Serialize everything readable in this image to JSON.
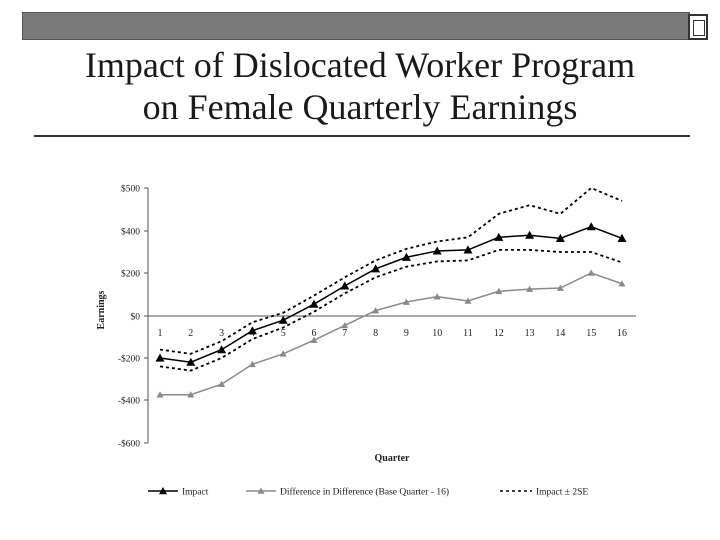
{
  "slide": {
    "title_line1": "Impact of Dislocated Worker Program",
    "title_line2": "on Female Quarterly Earnings"
  },
  "chart_data": {
    "type": "line",
    "xlabel": "Quarter",
    "ylabel": "Earnings",
    "ylim": [
      -500,
      500
    ],
    "y_ticks": [
      500,
      400,
      200,
      0,
      -200,
      -400,
      -600
    ],
    "y_tick_labels": [
      "$500",
      "$400",
      "$200",
      "$0",
      "-$200",
      "-$400",
      "-$600"
    ],
    "x": [
      1,
      2,
      3,
      4,
      5,
      6,
      7,
      8,
      9,
      10,
      11,
      12,
      13,
      14,
      15,
      16
    ],
    "grid": false,
    "legend_position": "bottom",
    "series": [
      {
        "name": "Impact",
        "style": "solid-triangle",
        "color": "#000000",
        "values": [
          -200,
          -220,
          -160,
          -70,
          -20,
          55,
          140,
          220,
          275,
          305,
          310,
          370,
          380,
          365,
          410,
          365
        ]
      },
      {
        "name": "Difference in Difference (Base Quarter - 16)",
        "style": "gray-triangle",
        "color": "#8a8a8a",
        "values": [
          -375,
          -375,
          -325,
          -230,
          -180,
          -115,
          -45,
          25,
          65,
          90,
          70,
          115,
          125,
          130,
          200,
          150
        ]
      },
      {
        "name": "Impact ± 2SE",
        "style": "dashed",
        "color": "#000000",
        "upper": [
          -160,
          -180,
          -120,
          -30,
          15,
          95,
          180,
          260,
          315,
          350,
          370,
          440,
          460,
          440,
          500,
          470
        ],
        "lower": [
          -240,
          -260,
          -200,
          -110,
          -55,
          20,
          105,
          180,
          230,
          255,
          260,
          310,
          310,
          300,
          300,
          250
        ]
      }
    ]
  }
}
